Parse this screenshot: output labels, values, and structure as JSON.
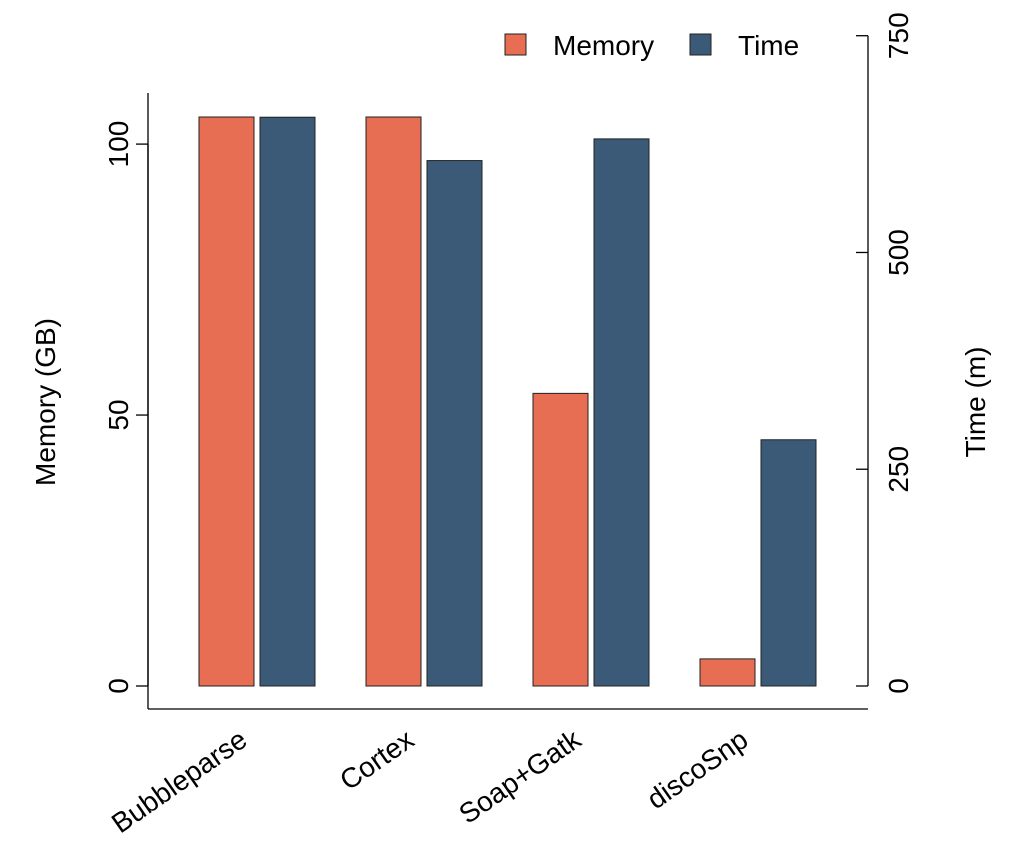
{
  "chart_data": {
    "type": "bar",
    "categories": [
      "Bubbleparse",
      "Cortex",
      "Soap+Gatk",
      "discoSnp"
    ],
    "series": [
      {
        "name": "Memory",
        "axis": "left",
        "color": "#E76E52",
        "values": [
          105,
          105,
          54,
          5
        ]
      },
      {
        "name": "Time",
        "axis": "right",
        "color": "#3A5A78",
        "values": [
          656,
          606,
          631,
          284
        ]
      }
    ],
    "ylabel_left": "Memory (GB)",
    "ylabel_right": "Time (m)",
    "left_axis": {
      "ticks": [
        0,
        50,
        100
      ],
      "tick_labels": [
        "0",
        "50",
        "100"
      ],
      "range": [
        0,
        105
      ]
    },
    "right_axis": {
      "ticks": [
        0,
        250,
        500,
        750
      ],
      "tick_labels": [
        "0",
        "250",
        "500",
        "750"
      ],
      "range": [
        0,
        656.25
      ]
    },
    "legend": {
      "placement": "top-right",
      "entries": [
        "Memory",
        "Time"
      ]
    },
    "grid": false,
    "x_tick_rotation_deg": -35
  }
}
